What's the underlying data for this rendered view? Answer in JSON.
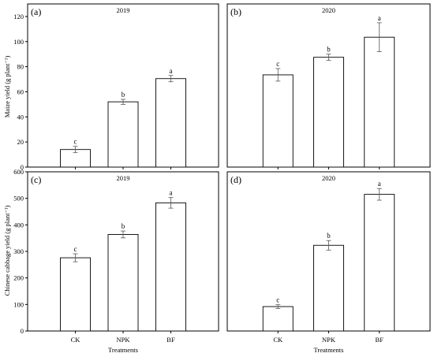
{
  "figure": {
    "xlabel": "Treatments",
    "ylabel_top": "Maize yield (g plant⁻¹)",
    "ylabel_bottom": "Chinese cabbage yield (g plant⁻¹)"
  },
  "chart_data": [
    {
      "type": "bar",
      "panel": "(a)",
      "title": "2019",
      "categories": [
        "CK",
        "NPK",
        "BF"
      ],
      "values": [
        14,
        52,
        70.5
      ],
      "errors": [
        2.5,
        2,
        2.5
      ],
      "letters": [
        "c",
        "b",
        "a"
      ],
      "ylabel": "Maize yield (g plant⁻¹)",
      "ylim": [
        0,
        130
      ],
      "yticks": [
        0,
        20,
        40,
        60,
        80,
        100,
        120
      ],
      "grid": false
    },
    {
      "type": "bar",
      "panel": "(b)",
      "title": "2020",
      "categories": [
        "CK",
        "NPK",
        "BF"
      ],
      "values": [
        73.5,
        87.5,
        103.5
      ],
      "errors": [
        5,
        2.5,
        11.5
      ],
      "letters": [
        "c",
        "b",
        "a"
      ],
      "ylim": [
        0,
        130
      ],
      "yticks": [],
      "grid": false
    },
    {
      "type": "bar",
      "panel": "(c)",
      "title": "2019",
      "categories": [
        "CK",
        "NPK",
        "BF"
      ],
      "values": [
        276,
        364,
        483
      ],
      "errors": [
        15,
        13,
        20
      ],
      "letters": [
        "c",
        "b",
        "a"
      ],
      "xlabel": "Treatments",
      "ylabel": "Chinese cabbage yield (g plant⁻¹)",
      "ylim": [
        0,
        600
      ],
      "yticks": [
        0,
        100,
        200,
        300,
        400,
        500,
        600
      ],
      "grid": false
    },
    {
      "type": "bar",
      "panel": "(d)",
      "title": "2020",
      "categories": [
        "CK",
        "NPK",
        "BF"
      ],
      "values": [
        92,
        323,
        515
      ],
      "errors": [
        7,
        18,
        22
      ],
      "letters": [
        "c",
        "b",
        "a"
      ],
      "xlabel": "Treatments",
      "ylim": [
        0,
        600
      ],
      "yticks": [],
      "grid": false
    }
  ]
}
